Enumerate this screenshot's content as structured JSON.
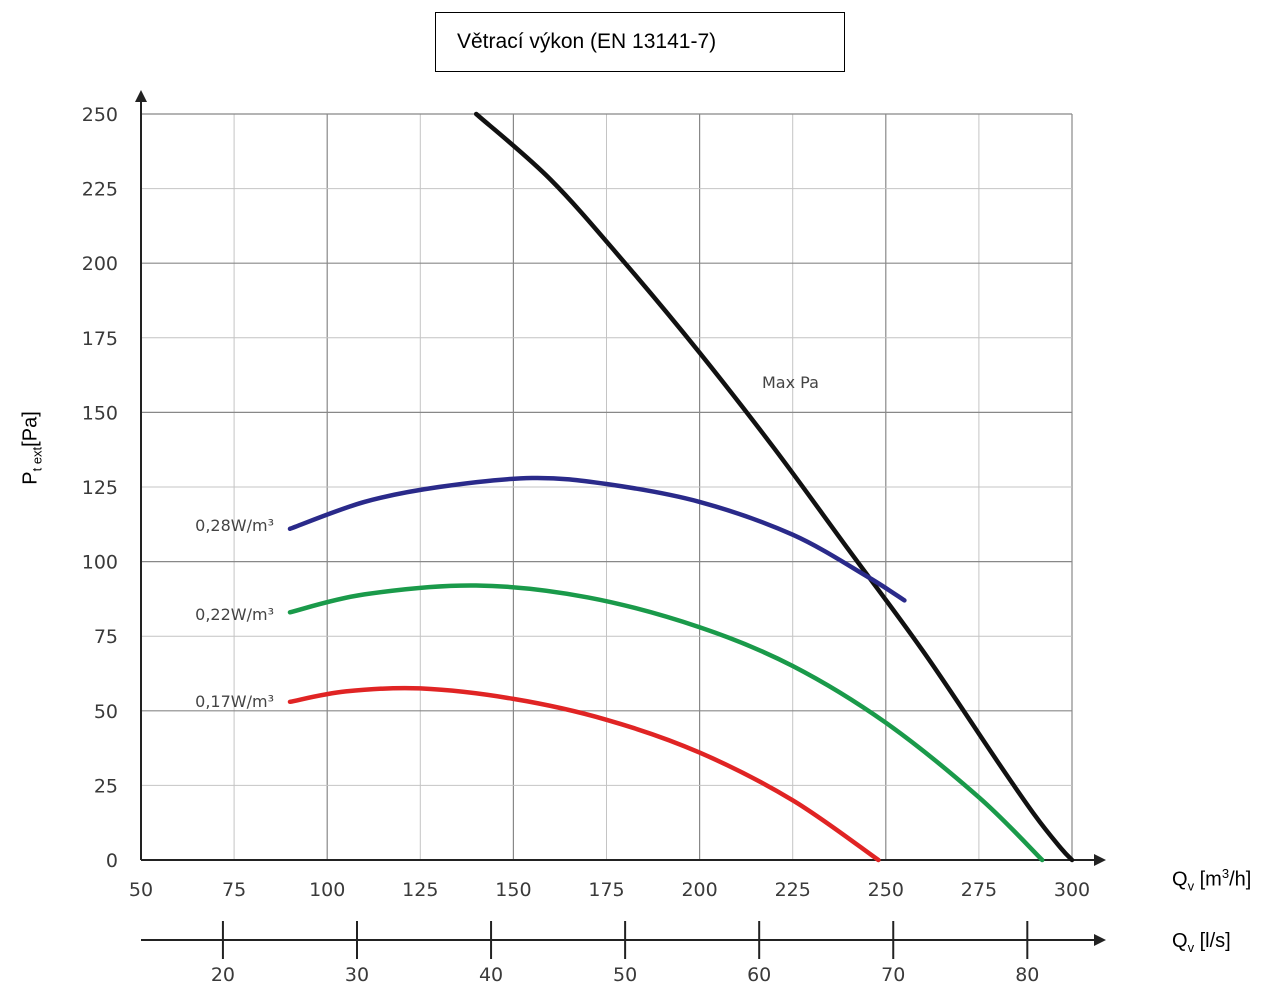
{
  "chart_data": {
    "type": "line",
    "title": "Větrací výkon (EN 13141-7)",
    "ylabel": {
      "main": "P",
      "sub": "t ext",
      "unit": "[Pa]"
    },
    "xlabel": {
      "main": "Q",
      "sub": "v",
      "unit_pre": " [m",
      "sup": "3",
      "unit_post": "/h]"
    },
    "x2label": {
      "main": "Q",
      "sub": "v",
      "unit": " [l/s]"
    },
    "xlim": [
      50,
      300
    ],
    "ylim": [
      0,
      250
    ],
    "x_ticks": [
      "50",
      "75",
      "100",
      "125",
      "150",
      "175",
      "200",
      "225",
      "250",
      "275",
      "300"
    ],
    "y_ticks": [
      "0",
      "25",
      "50",
      "75",
      "100",
      "125",
      "150",
      "175",
      "200",
      "225",
      "250"
    ],
    "x2_ticks": [
      "20",
      "30",
      "40",
      "50",
      "60",
      "70",
      "80"
    ],
    "grid": true,
    "series": [
      {
        "name": "Max Pa",
        "color": "#111111",
        "x": [
          140,
          160,
          180,
          200,
          220,
          240,
          260,
          280,
          290,
          297,
          300
        ],
        "y": [
          250,
          228,
          200,
          170,
          138,
          104,
          70,
          33,
          15,
          4,
          0
        ]
      },
      {
        "name": "0,28W/m³",
        "color": "#2a2a8a",
        "x": [
          90,
          110,
          130,
          155,
          175,
          200,
          225,
          245,
          255
        ],
        "y": [
          111,
          120,
          125,
          128,
          126,
          120,
          109,
          95,
          87
        ]
      },
      {
        "name": "0,22W/m³",
        "color": "#1a9a4a",
        "x": [
          90,
          110,
          140,
          170,
          200,
          225,
          250,
          275,
          292
        ],
        "y": [
          83,
          89,
          92,
          88,
          78,
          65,
          46,
          21,
          0
        ]
      },
      {
        "name": "0,17W/m³",
        "color": "#e02424",
        "x": [
          90,
          105,
          125,
          150,
          175,
          200,
          225,
          248
        ],
        "y": [
          53,
          56.5,
          57.5,
          54,
          47,
          36,
          20,
          0
        ]
      }
    ]
  }
}
